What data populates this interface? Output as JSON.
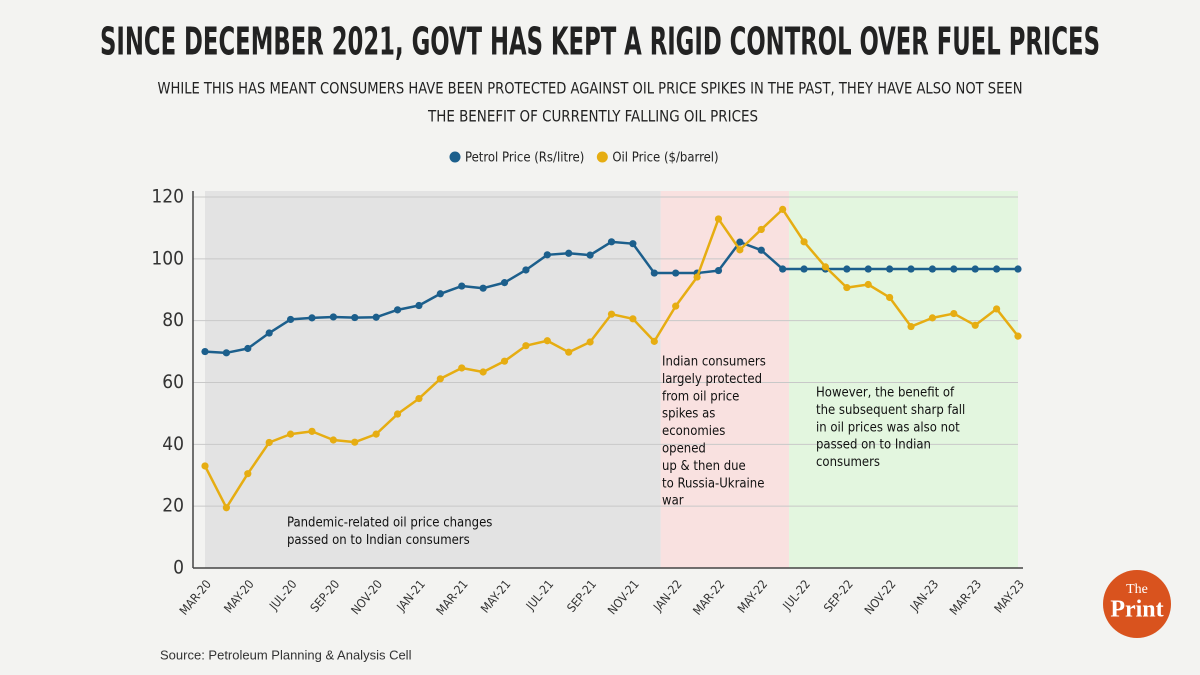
{
  "chart_data": {
    "type": "line",
    "title": "SINCE DECEMBER 2021, GOVT HAS KEPT A RIGID CONTROL OVER FUEL PRICES",
    "subtitle": [
      "WHILE THIS HAS MEANT CONSUMERS HAVE BEEN PROTECTED AGAINST OIL PRICE SPIKES IN THE PAST, THEY HAVE ALSO NOT SEEN",
      "THE BENEFIT OF CURRENTLY FALLING OIL PRICES"
    ],
    "categories": [
      "MAR-20",
      null,
      "MAY-20",
      null,
      "JUL-20",
      null,
      "SEP-20",
      null,
      "NOV-20",
      null,
      "JAN-21",
      null,
      "MAR-21",
      null,
      "MAY-21",
      null,
      "JUL-21",
      null,
      "SEP-21",
      null,
      "NOV-21",
      null,
      "JAN-22",
      null,
      "MAR-22",
      null,
      "MAY-22",
      null,
      "JUL-22",
      null,
      "SEP-22",
      null,
      "NOV-22",
      null,
      "JAN-23",
      null,
      "MAR-23",
      null,
      "MAY-23"
    ],
    "series": [
      {
        "name": "Petrol Price (Rs/litre)",
        "color": "#1c5f8c",
        "values": [
          70,
          69.6,
          71,
          76,
          80.4,
          80.9,
          81.2,
          81,
          81.1,
          83.5,
          84.9,
          88.7,
          91.2,
          90.5,
          92.3,
          96.4,
          101.3,
          101.8,
          101.2,
          105.5,
          104.9,
          95.4,
          95.4,
          95.4,
          96.2,
          105.4,
          102.8,
          96.7,
          96.7,
          96.7,
          96.7,
          96.7,
          96.7,
          96.7,
          96.7,
          96.7,
          96.7,
          96.7,
          96.7
        ]
      },
      {
        "name": "Oil Price ($/barrel)",
        "color": "#e6ad12",
        "values": [
          33,
          19.5,
          30.5,
          40.6,
          43.3,
          44.2,
          41.4,
          40.7,
          43.3,
          49.8,
          54.8,
          61.2,
          64.7,
          63.4,
          66.9,
          71.9,
          73.5,
          69.8,
          73.1,
          82.1,
          80.6,
          73.3,
          84.7,
          94.1,
          112.9,
          102.9,
          109.5,
          116,
          105.5,
          97.4,
          90.7,
          91.7,
          87.5,
          78.1,
          80.9,
          82.3,
          78.5,
          83.8,
          75
        ]
      }
    ],
    "ylim": [
      0,
      120
    ],
    "yticks": [
      0,
      20,
      40,
      60,
      80,
      100,
      120
    ],
    "grid": true,
    "legend": "top",
    "annotations": [
      [
        "Pandemic-related oil price changes",
        "passed on to Indian consumers"
      ],
      [
        "Indian consumers",
        "largely protected",
        "from oil price",
        "spikes as",
        "economies",
        "opened",
        "up & then due",
        "to Russia-Ukraine",
        "war"
      ],
      [
        "However, the benefit of",
        "the subsequent sharp fall",
        "in oil prices was also not",
        "passed on to Indian",
        "consumers"
      ]
    ],
    "source": "Source: Petroleum Planning & Analysis Cell",
    "logo": [
      "The",
      "Print"
    ]
  }
}
